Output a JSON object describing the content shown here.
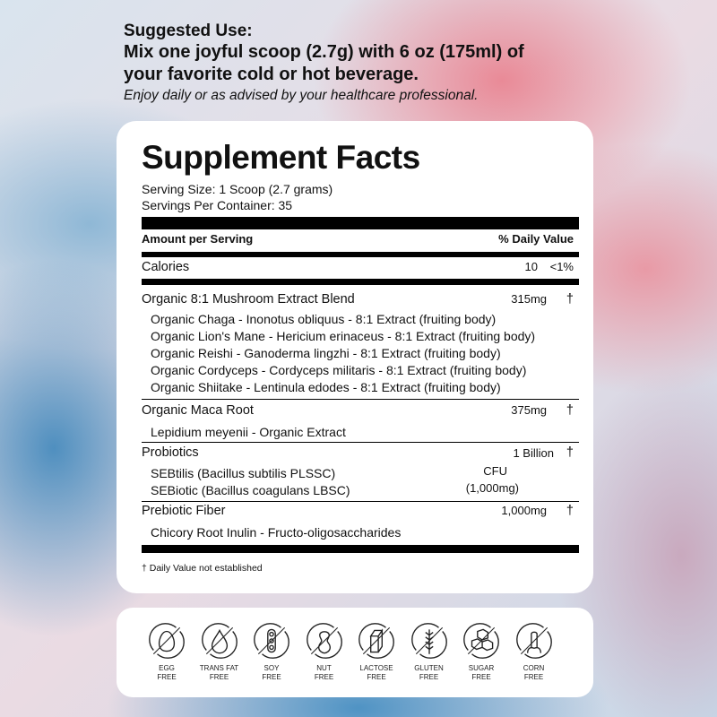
{
  "intro": {
    "heading": "Suggested Use:",
    "line1": "Mix one joyful scoop (2.7g) with 6 oz (175ml) of",
    "line2": "your favorite cold or hot beverage.",
    "note": "Enjoy daily or as advised by your healthcare professional."
  },
  "facts": {
    "title": "Supplement Facts",
    "serving_size": "Serving Size: 1 Scoop (2.7 grams)",
    "servings_per_container": "Servings Per Container: 35",
    "header_left": "Amount per Serving",
    "header_right": "% Daily Value",
    "calories": {
      "label": "Calories",
      "amount": "10",
      "dv": "<1%"
    },
    "mushroom": {
      "label": "Organic 8:1 Mushroom Extract Blend",
      "amount": "315mg",
      "dv": "†",
      "items": [
        "Organic Chaga - Inonotus obliquus - 8:1 Extract (fruiting body)",
        "Organic Lion's Mane - Hericium erinaceus - 8:1 Extract (fruiting body)",
        "Organic Reishi - Ganoderma lingzhi - 8:1 Extract (fruiting body)",
        "Organic Cordyceps - Cordyceps militaris - 8:1 Extract (fruiting body)",
        "Organic Shiitake - Lentinula edodes - 8:1 Extract (fruiting body)"
      ]
    },
    "maca": {
      "label": "Organic Maca Root",
      "amount": "375mg",
      "dv": "†",
      "items": [
        "Lepidium meyenii - Organic Extract"
      ]
    },
    "probiotics": {
      "label": "Probiotics",
      "amount1": "1 Billion",
      "amount2": "CFU",
      "amount3": "(1,000mg)",
      "dv": "†",
      "items": [
        "SEBtilis (Bacillus subtilis PLSSC)",
        "SEBiotic (Bacillus coagulans LBSC)"
      ]
    },
    "prebiotic": {
      "label": "Prebiotic Fiber",
      "amount": "1,000mg",
      "dv": "†",
      "items": [
        "Chicory Root Inulin - Fructo-oligosaccharides"
      ]
    },
    "footnote": "† Daily Value not established"
  },
  "badges": [
    {
      "icon": "egg-icon",
      "l1": "EGG",
      "l2": "FREE"
    },
    {
      "icon": "drop-icon",
      "l1": "TRANS FAT",
      "l2": "FREE"
    },
    {
      "icon": "soybean-icon",
      "l1": "SOY",
      "l2": "FREE"
    },
    {
      "icon": "peanut-icon",
      "l1": "NUT",
      "l2": "FREE"
    },
    {
      "icon": "milk-carton-icon",
      "l1": "LACTOSE",
      "l2": "FREE"
    },
    {
      "icon": "wheat-icon",
      "l1": "GLUTEN",
      "l2": "FREE"
    },
    {
      "icon": "sugar-cubes-icon",
      "l1": "SUGAR",
      "l2": "FREE"
    },
    {
      "icon": "corn-icon",
      "l1": "CORN",
      "l2": "FREE"
    }
  ]
}
